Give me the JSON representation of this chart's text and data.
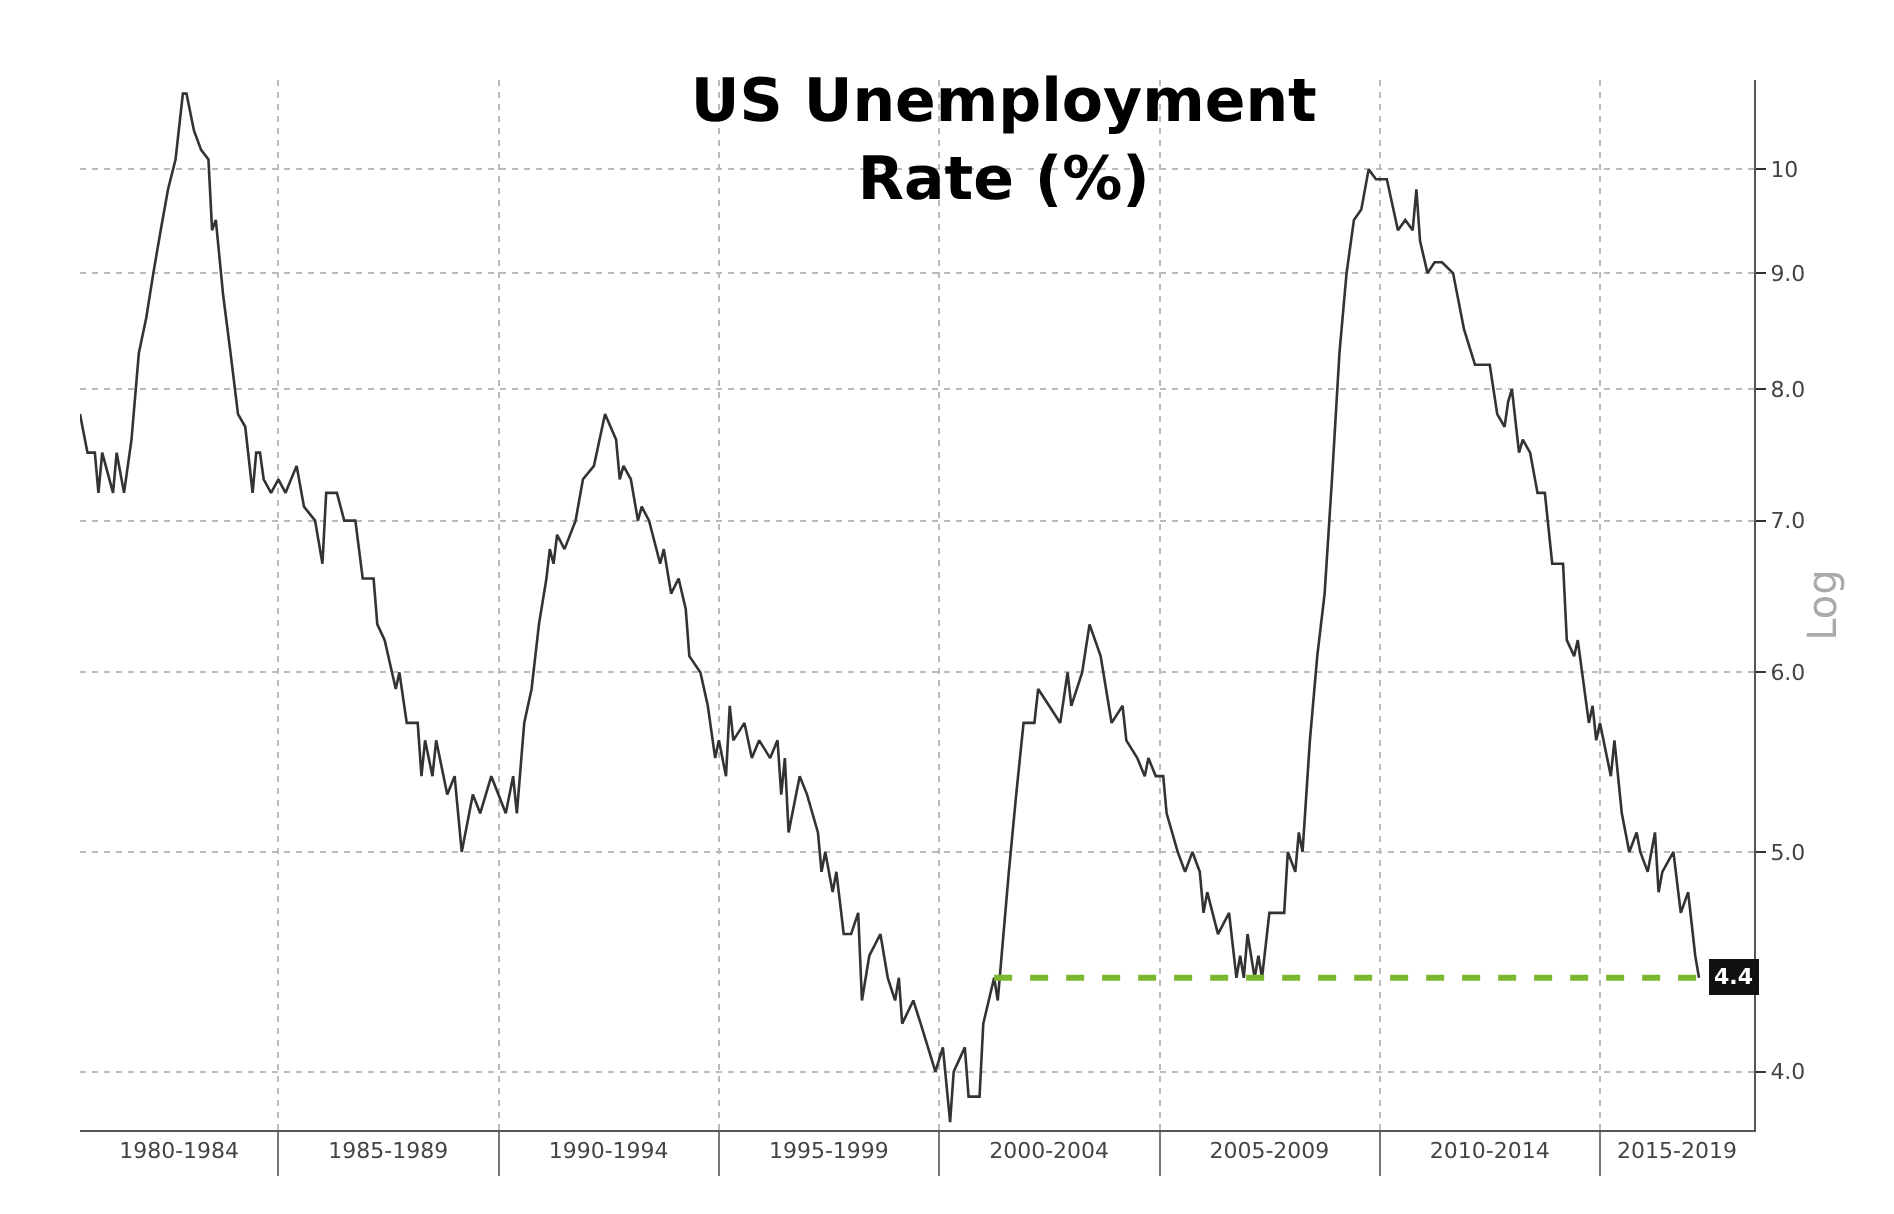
{
  "chart_data": {
    "type": "line",
    "title": "US Unemployment\nRate (%)",
    "ylabel": "Log",
    "x": [
      "1980-07",
      "1980-09",
      "1980-11",
      "1980-12",
      "1981-01",
      "1981-04",
      "1981-05",
      "1981-07",
      "1981-09",
      "1981-11",
      "1982-01",
      "1982-03",
      "1982-05",
      "1982-07",
      "1982-09",
      "1982-11",
      "1982-12",
      "1983-02",
      "1983-04",
      "1983-06",
      "1983-07",
      "1983-08",
      "1983-10",
      "1983-12",
      "1984-02",
      "1984-04",
      "1984-06",
      "1984-07",
      "1984-08",
      "1984-09",
      "1984-11",
      "1985-01",
      "1985-03",
      "1985-06",
      "1985-08",
      "1985-11",
      "1986-01",
      "1986-02",
      "1986-05",
      "1986-07",
      "1986-10",
      "1986-12",
      "1987-03",
      "1987-04",
      "1987-06",
      "1987-09",
      "1987-10",
      "1987-12",
      "1988-03",
      "1988-04",
      "1988-05",
      "1988-07",
      "1988-08",
      "1988-11",
      "1989-01",
      "1989-03",
      "1989-06",
      "1989-08",
      "1989-11",
      "1990-03",
      "1990-05",
      "1990-06",
      "1990-08",
      "1990-10",
      "1990-12",
      "1991-02",
      "1991-03",
      "1991-04",
      "1991-05",
      "1991-07",
      "1991-10",
      "1991-12",
      "1992-03",
      "1992-06",
      "1992-09",
      "1992-10",
      "1992-11",
      "1993-01",
      "1993-03",
      "1993-04",
      "1993-06",
      "1993-09",
      "1993-10",
      "1993-12",
      "1994-02",
      "1994-04",
      "1994-05",
      "1994-08",
      "1994-10",
      "1994-12",
      "1995-01",
      "1995-03",
      "1995-04",
      "1995-05",
      "1995-08",
      "1995-10",
      "1995-12",
      "1996-03",
      "1996-05",
      "1996-06",
      "1996-07",
      "1996-08",
      "1996-11",
      "1997-01",
      "1997-04",
      "1997-05",
      "1997-06",
      "1997-08",
      "1997-09",
      "1997-11",
      "1998-01",
      "1998-03",
      "1998-04",
      "1998-06",
      "1998-09",
      "1998-11",
      "1999-01",
      "1999-02",
      "1999-03",
      "1999-06",
      "1999-08",
      "1999-12",
      "2000-02",
      "2000-04",
      "2000-05",
      "2000-08",
      "2000-09",
      "2000-12",
      "2001-01",
      "2001-04",
      "2001-05",
      "2001-08",
      "2001-10",
      "2001-12",
      "2002-03",
      "2002-04",
      "2002-07",
      "2002-10",
      "2002-12",
      "2003-01",
      "2003-04",
      "2003-06",
      "2003-09",
      "2003-12",
      "2004-03",
      "2004-04",
      "2004-07",
      "2004-09",
      "2004-10",
      "2004-12",
      "2005-02",
      "2005-03",
      "2005-06",
      "2005-08",
      "2005-10",
      "2005-12",
      "2006-01",
      "2006-02",
      "2006-05",
      "2006-08",
      "2006-10",
      "2006-11",
      "2006-12",
      "2007-01",
      "2007-03",
      "2007-04",
      "2007-05",
      "2007-07",
      "2007-11",
      "2007-12",
      "2008-02",
      "2008-03",
      "2008-04",
      "2008-06",
      "2008-08",
      "2008-10",
      "2008-12",
      "2009-02",
      "2009-04",
      "2009-06",
      "2009-08",
      "2009-10",
      "2009-12",
      "2010-03",
      "2010-06",
      "2010-08",
      "2010-10",
      "2010-11",
      "2010-12",
      "2011-02",
      "2011-04",
      "2011-06",
      "2011-09",
      "2011-12",
      "2012-03",
      "2012-07",
      "2012-09",
      "2012-11",
      "2012-12",
      "2013-01",
      "2013-03",
      "2013-04",
      "2013-06",
      "2013-08",
      "2013-10",
      "2013-12",
      "2014-02",
      "2014-03",
      "2014-04",
      "2014-06",
      "2014-07",
      "2014-10",
      "2014-11",
      "2014-12",
      "2015-01",
      "2015-04",
      "2015-05",
      "2015-07",
      "2015-09",
      "2015-11",
      "2015-12",
      "2016-02",
      "2016-04",
      "2016-05",
      "2016-06",
      "2016-09",
      "2016-11",
      "2017-01",
      "2017-03",
      "2017-04"
    ],
    "series": [
      {
        "color": "#333333",
        "values": [
          7.8,
          7.5,
          7.5,
          7.2,
          7.5,
          7.2,
          7.5,
          7.2,
          7.6,
          8.3,
          8.6,
          9.0,
          9.4,
          9.8,
          10.1,
          10.8,
          10.8,
          10.4,
          10.2,
          10.1,
          9.4,
          9.5,
          8.8,
          8.3,
          7.8,
          7.7,
          7.2,
          7.5,
          7.5,
          7.3,
          7.2,
          7.3,
          7.2,
          7.4,
          7.1,
          7.0,
          6.7,
          7.2,
          7.2,
          7.0,
          7.0,
          6.6,
          6.6,
          6.3,
          6.2,
          5.9,
          6.0,
          5.7,
          5.7,
          5.4,
          5.6,
          5.4,
          5.6,
          5.3,
          5.4,
          5.0,
          5.3,
          5.2,
          5.4,
          5.2,
          5.4,
          5.2,
          5.7,
          5.9,
          6.3,
          6.6,
          6.8,
          6.7,
          6.9,
          6.8,
          7.0,
          7.3,
          7.4,
          7.8,
          7.6,
          7.3,
          7.4,
          7.3,
          7.0,
          7.1,
          7.0,
          6.7,
          6.8,
          6.5,
          6.6,
          6.4,
          6.1,
          6.0,
          5.8,
          5.5,
          5.6,
          5.4,
          5.8,
          5.6,
          5.7,
          5.5,
          5.6,
          5.5,
          5.6,
          5.3,
          5.5,
          5.1,
          5.4,
          5.3,
          5.1,
          4.9,
          5.0,
          4.8,
          4.9,
          4.6,
          4.6,
          4.7,
          4.3,
          4.5,
          4.6,
          4.4,
          4.3,
          4.4,
          4.2,
          4.3,
          4.2,
          4.0,
          4.1,
          3.8,
          4.0,
          4.1,
          3.9,
          3.9,
          4.2,
          4.4,
          4.3,
          4.9,
          5.3,
          5.7,
          5.7,
          5.9,
          5.8,
          5.7,
          6.0,
          5.8,
          6.0,
          6.3,
          6.1,
          5.7,
          5.8,
          5.6,
          5.5,
          5.4,
          5.5,
          5.4,
          5.4,
          5.2,
          5.0,
          4.9,
          5.0,
          4.9,
          4.7,
          4.8,
          4.6,
          4.7,
          4.4,
          4.5,
          4.4,
          4.6,
          4.4,
          4.5,
          4.4,
          4.7,
          4.7,
          5.0,
          4.9,
          5.1,
          5.0,
          5.6,
          6.1,
          6.5,
          7.3,
          8.3,
          9.0,
          9.5,
          9.6,
          10.0,
          9.9,
          9.9,
          9.4,
          9.5,
          9.4,
          9.8,
          9.3,
          9.0,
          9.1,
          9.1,
          9.0,
          8.5,
          8.2,
          8.2,
          7.8,
          7.7,
          7.9,
          8.0,
          7.5,
          7.6,
          7.5,
          7.2,
          7.2,
          6.7,
          6.7,
          6.7,
          6.2,
          6.1,
          6.2,
          5.7,
          5.8,
          5.6,
          5.7,
          5.4,
          5.6,
          5.2,
          5.0,
          5.1,
          5.0,
          4.9,
          5.1,
          4.8,
          4.9,
          5.0,
          4.7,
          4.8,
          4.5,
          4.4
        ]
      },
      {
        "type": "line",
        "color": "#7cb82f",
        "line_style": "dashed",
        "x": [
          "2001-04",
          "2017-04"
        ],
        "values": [
          4.4,
          4.4
        ]
      }
    ],
    "annotations": [
      {
        "text": "4.4",
        "x": "2017-04",
        "y": 4.4
      }
    ],
    "xlim": [
      "1980-07",
      "2018-07"
    ],
    "xticks": [
      {
        "value": "1982-10",
        "label": "1980-1984"
      },
      {
        "value": "1985-01",
        "label": null
      },
      {
        "value": "1987-07",
        "label": "1985-1989"
      },
      {
        "value": "1990-01",
        "label": null
      },
      {
        "value": "1992-07",
        "label": "1990-1994"
      },
      {
        "value": "1995-01",
        "label": null
      },
      {
        "value": "1997-07",
        "label": "1995-1999"
      },
      {
        "value": "2000-01",
        "label": null
      },
      {
        "value": "2002-07",
        "label": "2000-2004"
      },
      {
        "value": "2005-01",
        "label": null
      },
      {
        "value": "2007-07",
        "label": "2005-2009"
      },
      {
        "value": "2010-01",
        "label": null
      },
      {
        "value": "2012-07",
        "label": "2010-2014"
      },
      {
        "value": "2015-01",
        "label": null
      },
      {
        "value": "2016-10",
        "label": "2015-2019"
      }
    ],
    "ylim": [
      3.77,
      10.95
    ],
    "log": true,
    "yticks": [
      {
        "value": 4,
        "label": "4.0"
      },
      {
        "value": 5,
        "label": "5.0"
      },
      {
        "value": 6,
        "label": "6.0"
      },
      {
        "value": 7,
        "label": "7.0"
      },
      {
        "value": 8,
        "label": "8.0"
      },
      {
        "value": 9,
        "label": "9.0"
      },
      10
    ],
    "grid": true,
    "line_style": "solid",
    "marker": "none"
  }
}
